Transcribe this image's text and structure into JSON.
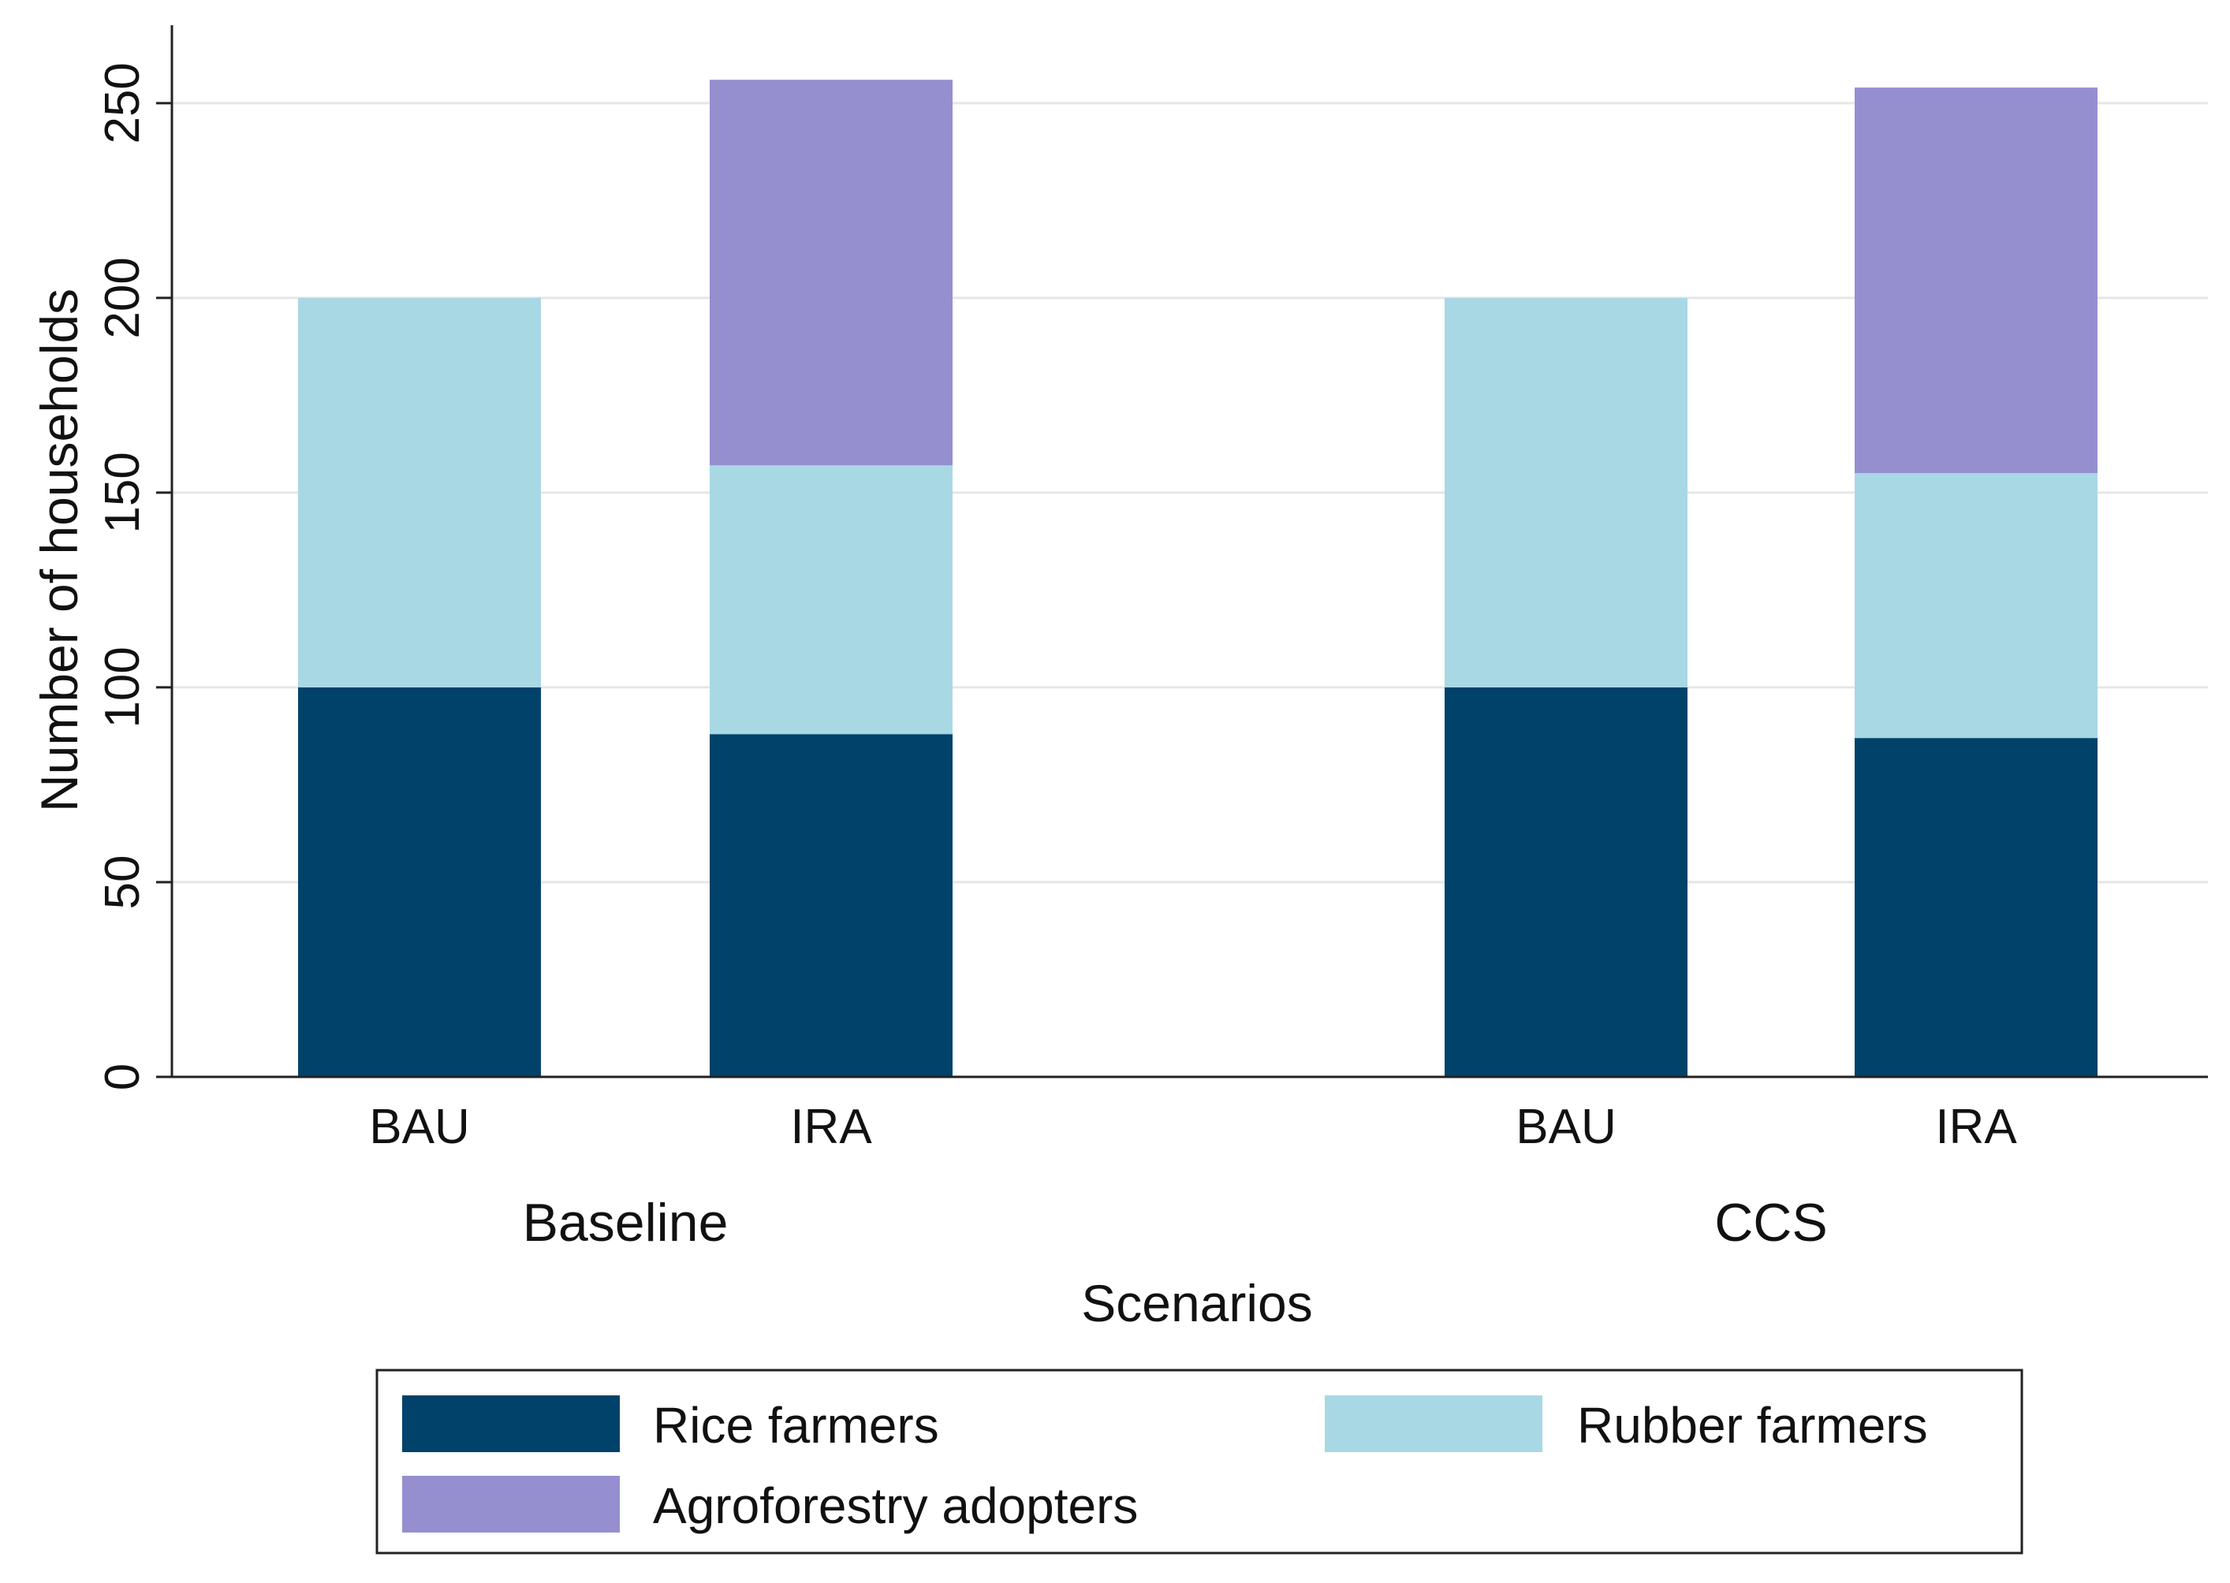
{
  "chart_data": {
    "type": "bar",
    "stacked": true,
    "ylabel": "Number of households",
    "xlabel": "Scenarios",
    "ylim": [
      0,
      270
    ],
    "yticks": [
      0,
      50,
      100,
      150,
      200,
      250
    ],
    "grid": true,
    "groups": [
      {
        "name": "Baseline",
        "categories": [
          "BAU",
          "IRA"
        ]
      },
      {
        "name": "CCS",
        "categories": [
          "BAU",
          "IRA"
        ]
      }
    ],
    "series": [
      {
        "name": "Rice farmers",
        "color": "#00426a",
        "values": [
          100,
          88,
          100,
          87
        ]
      },
      {
        "name": "Rubber farmers",
        "color": "#a8d8e4",
        "values": [
          100,
          69,
          100,
          68
        ]
      },
      {
        "name": "Agroforestry adopters",
        "color": "#958fd0",
        "values": [
          0,
          99,
          0,
          99
        ]
      }
    ],
    "legend": {
      "placement": "bottom",
      "items": [
        "Rice farmers",
        "Rubber farmers",
        "Agroforestry adopters"
      ]
    }
  }
}
